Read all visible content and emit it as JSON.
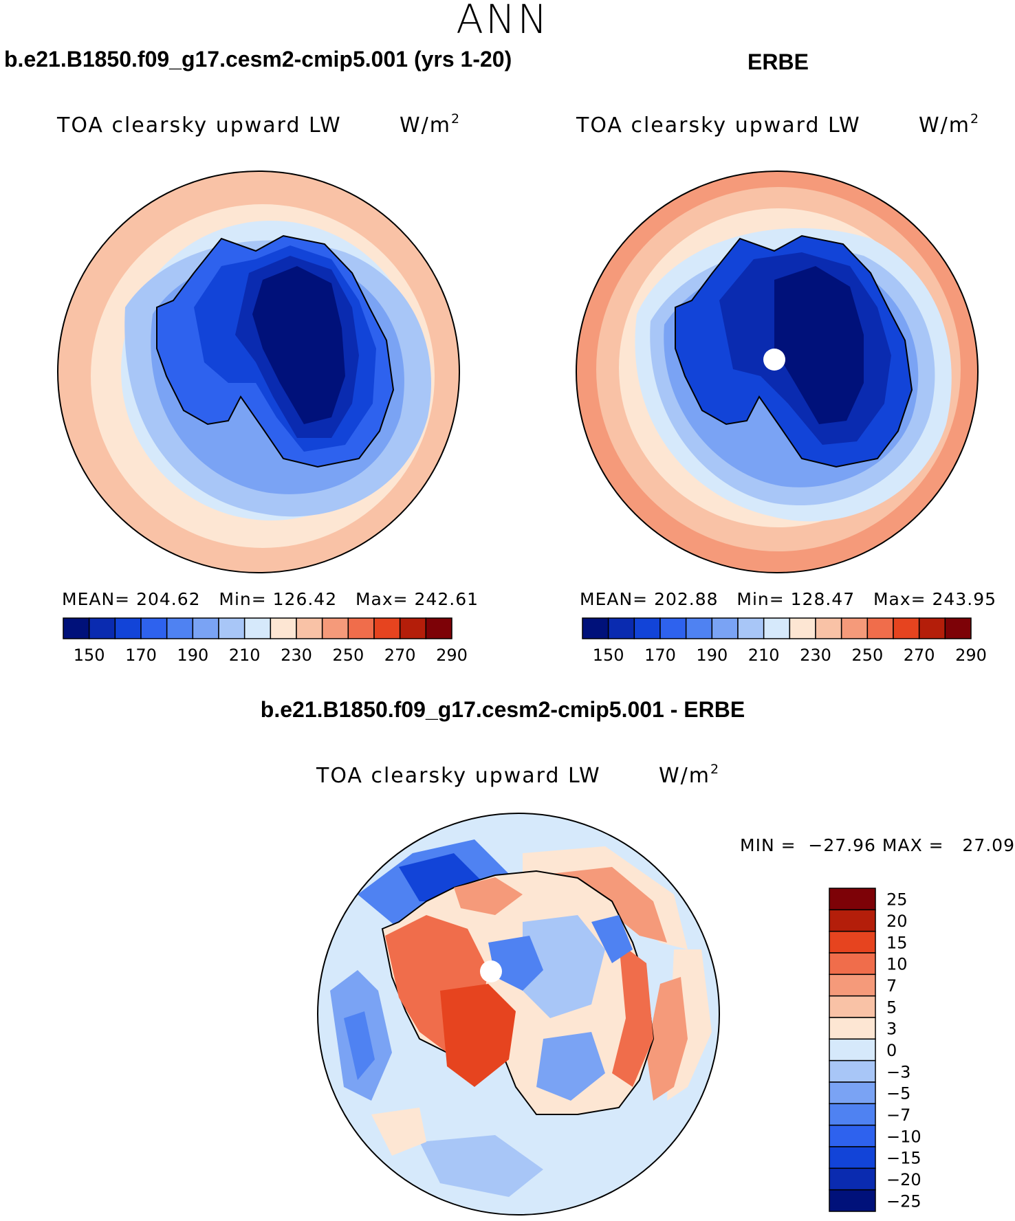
{
  "figure": {
    "season": "ANN",
    "variable": "TOA clearsky upward LW",
    "units_base": "W/m",
    "units_exp": "2"
  },
  "panels": [
    {
      "title": "b.e21.B1850.f09_g17.cesm2-cmip5.001 (yrs 1-20)",
      "stats": "MEAN= 204.62   Min= 126.42   Max= 242.61"
    },
    {
      "title": "ERBE",
      "stats": "MEAN= 202.88   Min= 128.47   Max= 243.95"
    },
    {
      "title": "b.e21.B1850.f09_g17.cesm2-cmip5.001 - ERBE",
      "stats": "MIN =  −27.96 MAX =   27.09"
    }
  ],
  "chart_data": [
    {
      "type": "heatmap",
      "projection": "south polar stereographic",
      "title": "b.e21.B1850.f09_g17.cesm2-cmip5.001 (yrs 1-20)",
      "colorbar_ticks": [
        "150",
        "170",
        "190",
        "210",
        "230",
        "250",
        "270",
        "290"
      ],
      "colors": [
        "#00117a",
        "#0a2bb0",
        "#1244d8",
        "#2e62ee",
        "#4f82f2",
        "#7aa3f4",
        "#a8c6f7",
        "#d6e9fb",
        "#fde6d3",
        "#f9c2a6",
        "#f59a7a",
        "#f06d4b",
        "#e6441f",
        "#b41e0a",
        "#7d0207"
      ],
      "mean": 204.62,
      "min": 126.42,
      "max": 242.61
    },
    {
      "type": "heatmap",
      "projection": "south polar stereographic",
      "title": "ERBE",
      "colorbar_ticks": [
        "150",
        "170",
        "190",
        "210",
        "230",
        "250",
        "270",
        "290"
      ],
      "colors": [
        "#00117a",
        "#0a2bb0",
        "#1244d8",
        "#2e62ee",
        "#4f82f2",
        "#7aa3f4",
        "#a8c6f7",
        "#d6e9fb",
        "#fde6d3",
        "#f9c2a6",
        "#f59a7a",
        "#f06d4b",
        "#e6441f",
        "#b41e0a",
        "#7d0207"
      ],
      "mean": 202.88,
      "min": 128.47,
      "max": 243.95
    },
    {
      "type": "heatmap",
      "projection": "south polar stereographic",
      "title": "b.e21.B1850.f09_g17.cesm2-cmip5.001 - ERBE",
      "colorbar_ticks": [
        "25",
        "20",
        "15",
        "10",
        "7",
        "5",
        "3",
        "0",
        "−3",
        "−5",
        "−7",
        "−10",
        "−15",
        "−20",
        "−25"
      ],
      "colors": [
        "#7d0207",
        "#b41e0a",
        "#e6441f",
        "#f06d4b",
        "#f59a7a",
        "#f9c2a6",
        "#fde6d3",
        "#d6e9fb",
        "#a8c6f7",
        "#7aa3f4",
        "#4f82f2",
        "#2e62ee",
        "#1244d8",
        "#0a2bb0",
        "#00117a"
      ],
      "min": -27.96,
      "max": 27.09
    }
  ]
}
